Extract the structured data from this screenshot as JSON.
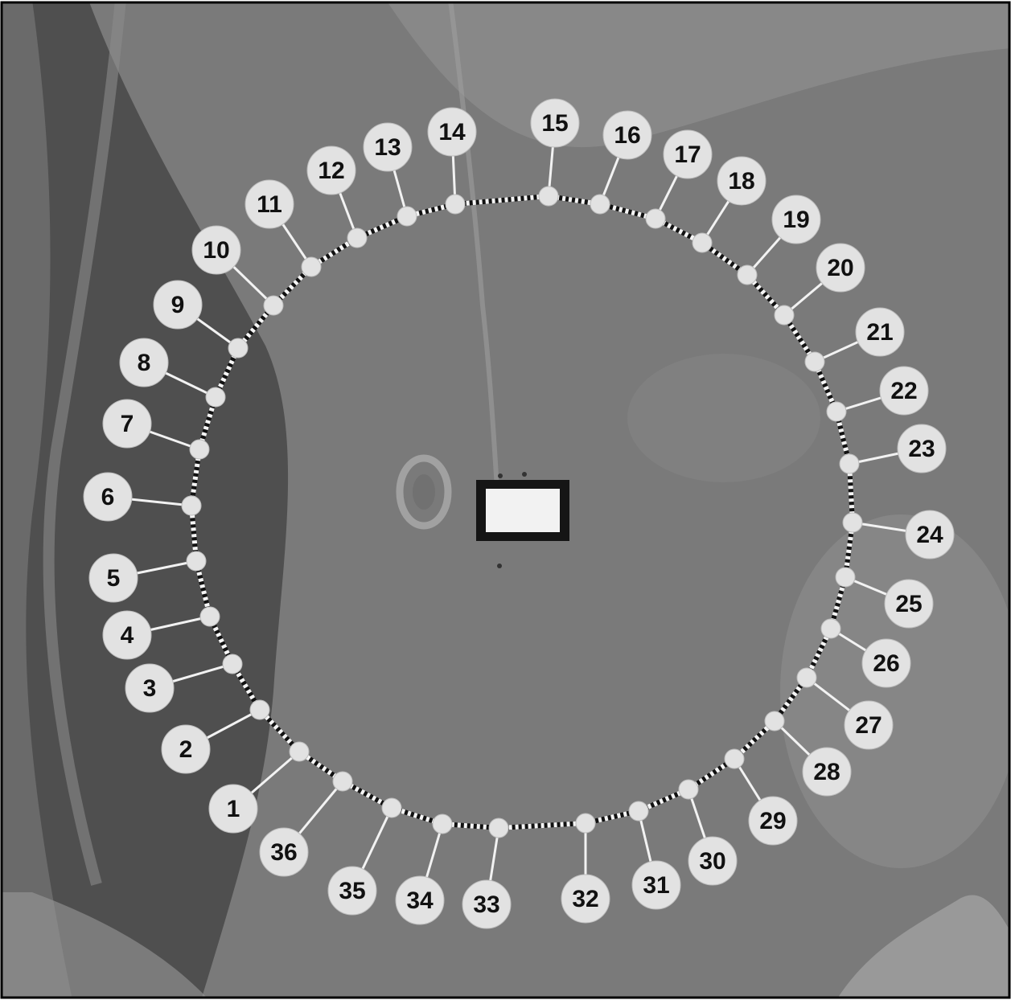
{
  "figure": {
    "type": "aerial-photograph-with-annotations",
    "colors": {
      "background": "#777777",
      "marker_fill": "#e2e2e2",
      "label_fill": "#e2e2e2",
      "leader_line": "#f2f2f2",
      "ring_dash_dark": "#111111",
      "ring_dash_light": "#f5f5f5",
      "center_frame": "#151515",
      "center_fill": "#f2f2f2"
    },
    "center_marker": {
      "name": "central-rectangle",
      "shape": "rectangle"
    },
    "ring": {
      "style": "dashed-black-white",
      "station_count": 36
    },
    "stations": [
      {
        "label": "1"
      },
      {
        "label": "2"
      },
      {
        "label": "3"
      },
      {
        "label": "4"
      },
      {
        "label": "5"
      },
      {
        "label": "6"
      },
      {
        "label": "7"
      },
      {
        "label": "8"
      },
      {
        "label": "9"
      },
      {
        "label": "10"
      },
      {
        "label": "11"
      },
      {
        "label": "12"
      },
      {
        "label": "13"
      },
      {
        "label": "14"
      },
      {
        "label": "15"
      },
      {
        "label": "16"
      },
      {
        "label": "17"
      },
      {
        "label": "18"
      },
      {
        "label": "19"
      },
      {
        "label": "20"
      },
      {
        "label": "21"
      },
      {
        "label": "22"
      },
      {
        "label": "23"
      },
      {
        "label": "24"
      },
      {
        "label": "25"
      },
      {
        "label": "26"
      },
      {
        "label": "27"
      },
      {
        "label": "28"
      },
      {
        "label": "29"
      },
      {
        "label": "30"
      },
      {
        "label": "31"
      },
      {
        "label": "32"
      },
      {
        "label": "33"
      },
      {
        "label": "34"
      },
      {
        "label": "35"
      },
      {
        "label": "36"
      }
    ]
  }
}
